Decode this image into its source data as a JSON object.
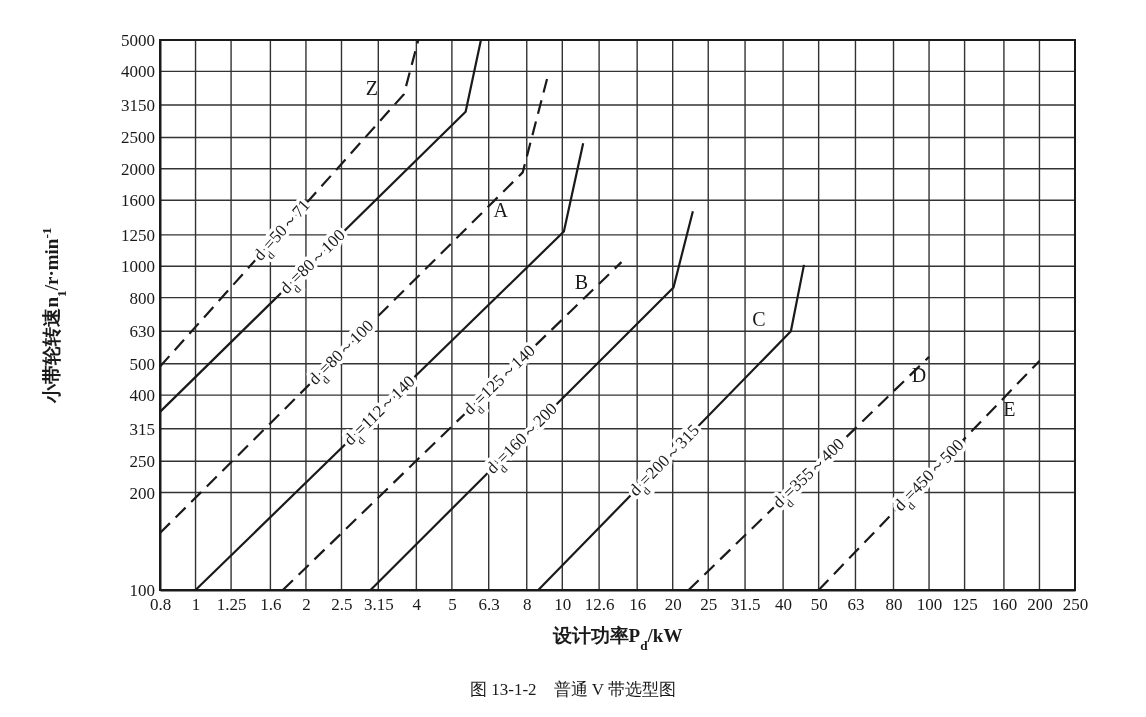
{
  "chart_data": {
    "type": "line",
    "title": "图 13-1-2　普通 V 带选型图",
    "xlabel": "设计功率P$_{d}$/kW",
    "ylabel": "小带轮转速n$_{1}$/r·min$^{-1}$",
    "log": "xy",
    "grid": true,
    "xlim": [
      0.8,
      250
    ],
    "ylim": [
      100,
      5000
    ],
    "xticks": [
      0.8,
      1,
      1.25,
      1.6,
      2,
      2.5,
      3.15,
      4,
      5,
      6.3,
      8,
      10,
      12.6,
      16,
      20,
      25,
      31.5,
      40,
      50,
      63,
      80,
      100,
      125,
      160,
      200,
      250
    ],
    "yticks": [
      100,
      200,
      250,
      315,
      400,
      500,
      630,
      800,
      1000,
      1250,
      1600,
      2000,
      2500,
      3150,
      4000,
      5000
    ],
    "series": [
      {
        "name": "d$_{d}$=50～71",
        "line_style": "dashed",
        "color": "#1a1a1a",
        "x": [
          0.8,
          3.7,
          4.05
        ],
        "values": [
          490,
          3400,
          5000
        ]
      },
      {
        "name": "d$_{d}$=80～100",
        "line_style": "solid",
        "color": "#1a1a1a",
        "x": [
          0.8,
          5.45,
          6.0
        ],
        "values": [
          355,
          3000,
          5000
        ]
      },
      {
        "name": "d$_{d}$=80～100",
        "line_style": "dashed",
        "color": "#1a1a1a",
        "x": [
          0.8,
          7.8,
          9.2
        ],
        "values": [
          150,
          1950,
          4000
        ]
      },
      {
        "name": "d$_{d}$=112～140",
        "line_style": "solid",
        "color": "#1a1a1a",
        "x": [
          1.0,
          10.1,
          11.4
        ],
        "values": [
          100,
          1280,
          2400
        ]
      },
      {
        "name": "d$_{d}$=125～140",
        "line_style": "dashed",
        "color": "#1a1a1a",
        "x": [
          1.73,
          14.5
        ],
        "values": [
          100,
          1030
        ]
      },
      {
        "name": "d$_{d}$=160～200",
        "line_style": "solid",
        "color": "#1a1a1a",
        "x": [
          3.0,
          20.1,
          22.7
        ],
        "values": [
          100,
          860,
          1480
        ]
      },
      {
        "name": "d$_{d}$=200～315",
        "line_style": "solid",
        "color": "#1a1a1a",
        "x": [
          8.6,
          42,
          45.6
        ],
        "values": [
          100,
          630,
          1010
        ]
      },
      {
        "name": "d$_{d}$=355～400",
        "line_style": "dashed",
        "color": "#1a1a1a",
        "x": [
          22.1,
          100
        ],
        "values": [
          100,
          525
        ]
      },
      {
        "name": "d$_{d}$=450～500",
        "line_style": "dashed",
        "color": "#1a1a1a",
        "x": [
          50,
          200
        ],
        "values": [
          100,
          510
        ]
      }
    ],
    "annotations": [
      "Z",
      "A",
      "B",
      "C",
      "D",
      "E"
    ]
  }
}
